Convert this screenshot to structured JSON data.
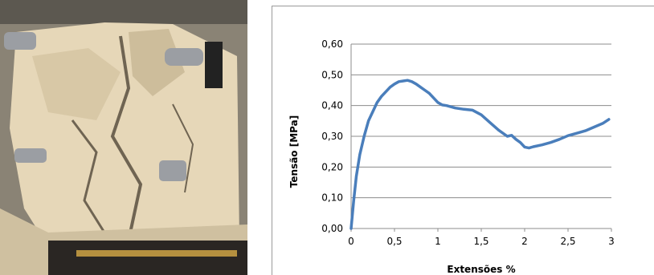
{
  "photo": {
    "label": "",
    "colors": {
      "specimen": "#e6d7b8",
      "crack": "#6f6452",
      "background": "#8a8375",
      "base": "#2a2623",
      "metal": "#9b9ea3"
    }
  },
  "chart_data": {
    "type": "line",
    "title": "",
    "xlabel": "Extensões %",
    "ylabel": "Tensão [MPa]",
    "xlim": [
      0,
      3
    ],
    "ylim": [
      0,
      0.6
    ],
    "xticks": [
      0,
      0.5,
      1,
      1.5,
      2,
      2.5,
      3
    ],
    "xtick_labels": [
      "0",
      "0,5",
      "1",
      "1,5",
      "2",
      "2,5",
      "3"
    ],
    "yticks": [
      0,
      0.1,
      0.2,
      0.3,
      0.4,
      0.5,
      0.6
    ],
    "ytick_labels": [
      "0,00",
      "0,10",
      "0,20",
      "0,30",
      "0,40",
      "0,50",
      "0,60"
    ],
    "grid": "horizontal",
    "legend": "none",
    "series": [
      {
        "color": "#4a7ebb",
        "x": [
          0,
          0.03,
          0.06,
          0.1,
          0.15,
          0.2,
          0.25,
          0.3,
          0.35,
          0.4,
          0.45,
          0.5,
          0.55,
          0.6,
          0.65,
          0.7,
          0.75,
          0.8,
          0.85,
          0.9,
          0.95,
          1.0,
          1.05,
          1.1,
          1.2,
          1.3,
          1.4,
          1.5,
          1.6,
          1.7,
          1.8,
          1.85,
          1.9,
          1.95,
          2.0,
          2.05,
          2.1,
          2.2,
          2.3,
          2.4,
          2.5,
          2.6,
          2.7,
          2.8,
          2.9,
          2.97
        ],
        "y": [
          0,
          0.09,
          0.17,
          0.24,
          0.3,
          0.35,
          0.38,
          0.41,
          0.43,
          0.445,
          0.46,
          0.47,
          0.478,
          0.48,
          0.482,
          0.478,
          0.47,
          0.46,
          0.45,
          0.44,
          0.425,
          0.41,
          0.402,
          0.4,
          0.392,
          0.388,
          0.385,
          0.37,
          0.345,
          0.32,
          0.3,
          0.303,
          0.29,
          0.28,
          0.265,
          0.262,
          0.266,
          0.272,
          0.28,
          0.29,
          0.302,
          0.31,
          0.318,
          0.33,
          0.342,
          0.355
        ]
      }
    ]
  }
}
